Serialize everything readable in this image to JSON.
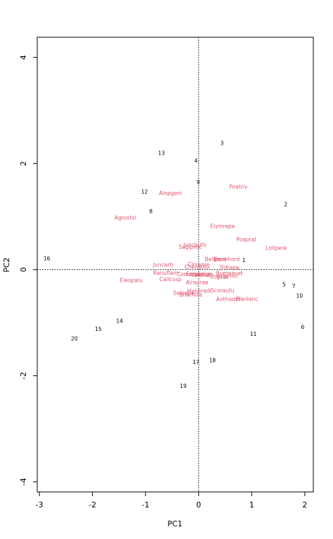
{
  "chart_data": {
    "type": "text-scatter",
    "xlabel": "PC1",
    "ylabel": "PC2",
    "xlim": [
      -3.04,
      2.16
    ],
    "ylim": [
      -4.19,
      4.38
    ],
    "xticks": [
      -3,
      -2,
      -1,
      0,
      1,
      2
    ],
    "yticks": [
      -4,
      -2,
      0,
      2,
      4
    ],
    "hline": 0,
    "vline": 0,
    "series": [
      {
        "color": "#000000",
        "labels": [
          "1",
          "2",
          "3",
          "4",
          "5",
          "6",
          "7",
          "8",
          "9",
          "10",
          "11",
          "12",
          "13",
          "14",
          "15",
          "16",
          "17",
          "18",
          "19",
          "20"
        ],
        "x": [
          0.85,
          1.64,
          0.44,
          -0.05,
          1.61,
          1.96,
          1.79,
          -0.9,
          -0.01,
          1.9,
          1.03,
          -1.02,
          -0.7,
          -1.49,
          -1.89,
          -2.86,
          -0.05,
          0.26,
          -0.29,
          -2.34
        ],
        "values": [
          0.17,
          1.22,
          2.37,
          2.04,
          -0.29,
          -1.09,
          -0.32,
          1.09,
          1.64,
          -0.5,
          -1.22,
          1.46,
          2.19,
          -0.98,
          -1.13,
          0.2,
          -1.75,
          -1.72,
          -2.2,
          -1.31
        ]
      },
      {
        "color": "#DF536B",
        "labels": [
          "Poatriv",
          "Alopgeni",
          "Agrostol",
          "Elymrepe",
          "Poaprat",
          "Lolipere",
          "Juncbufo",
          "Sagiproc",
          "Bellpere",
          "Bromhord",
          "Juncarti",
          "Cirsarve",
          "Chenalbu",
          "Trifrepe",
          "Ranuflam",
          "Comapalu",
          "Empenigr",
          "Vicilath",
          "Rumeacet",
          "Achimill",
          "Trifprat",
          "Callcusp",
          "Eleopalu",
          "Airaprae",
          "Hyporadi",
          "Scorautu",
          "Salirepe",
          "Bracruta",
          "Planlanc",
          "Anthodor"
        ],
        "x": [
          0.75,
          -0.53,
          -1.38,
          0.45,
          0.9,
          1.46,
          -0.07,
          -0.16,
          0.32,
          0.53,
          -0.67,
          0.0,
          -0.03,
          0.58,
          -0.62,
          -0.16,
          0.0,
          0.1,
          0.58,
          0.54,
          0.38,
          -0.53,
          -1.27,
          -0.03,
          0.01,
          0.45,
          -0.28,
          -0.15,
          0.91,
          0.56
        ],
        "values": [
          1.55,
          1.43,
          0.97,
          0.81,
          0.56,
          0.4,
          0.46,
          0.42,
          0.19,
          0.19,
          0.08,
          0.09,
          0.04,
          0.03,
          -0.07,
          -0.1,
          -0.09,
          -0.11,
          -0.08,
          -0.13,
          -0.15,
          -0.19,
          -0.21,
          -0.25,
          -0.41,
          -0.4,
          -0.45,
          -0.48,
          -0.56,
          -0.57
        ]
      }
    ]
  }
}
